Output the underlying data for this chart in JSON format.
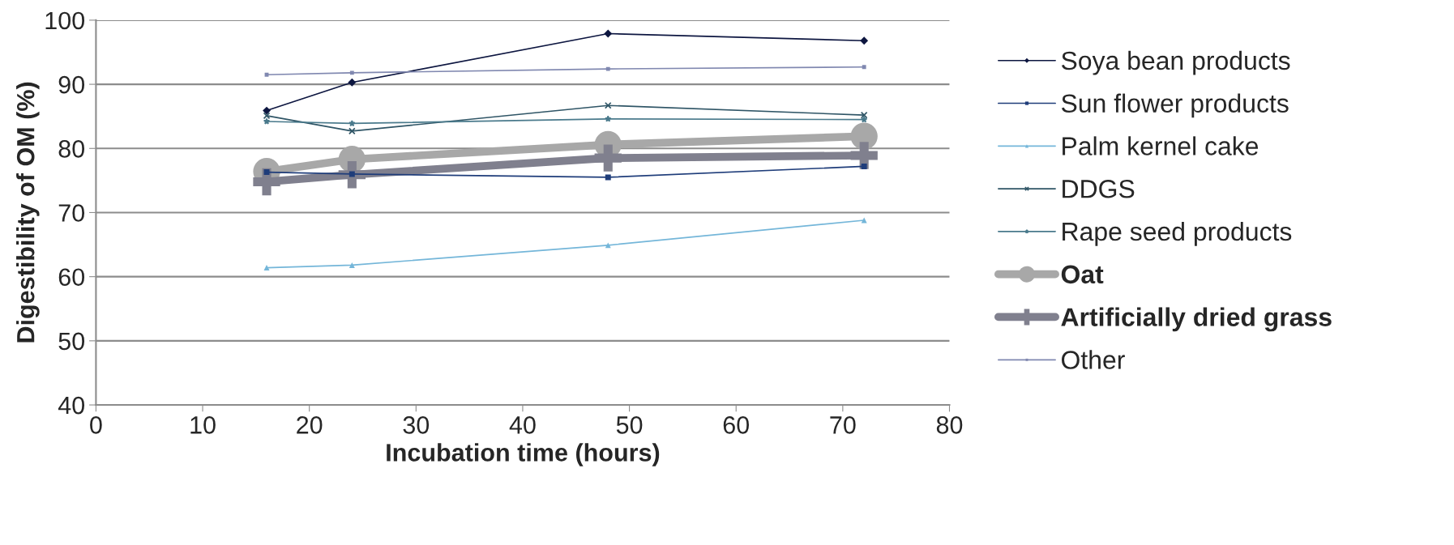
{
  "chart_data": {
    "type": "line",
    "xlabel": "Incubation time (hours)",
    "ylabel": "Digestibility of OM (%)",
    "x": [
      16,
      24,
      48,
      72
    ],
    "series": [
      {
        "name": "Soya bean products",
        "color": "#0d1640",
        "marker": "diamond",
        "values": [
          85.9,
          90.3,
          97.9,
          96.8
        ]
      },
      {
        "name": "Sun flower products",
        "color": "#1f3d7a",
        "marker": "square",
        "values": [
          76.3,
          76.0,
          75.5,
          77.2
        ]
      },
      {
        "name": "Palm kernel cake",
        "color": "#74b6d9",
        "marker": "triangle",
        "values": [
          61.4,
          61.8,
          64.9,
          68.8
        ]
      },
      {
        "name": "DDGS",
        "color": "#2f5566",
        "marker": "cross",
        "values": [
          85.1,
          82.7,
          86.7,
          85.2
        ]
      },
      {
        "name": "Rape seed products",
        "color": "#4a7a8c",
        "marker": "star",
        "values": [
          84.2,
          83.9,
          84.6,
          84.5
        ]
      },
      {
        "name": "Oat",
        "color": "#a8a8a8",
        "marker": "circle",
        "values": [
          76.4,
          78.3,
          80.6,
          81.9
        ]
      },
      {
        "name": "Artificially dried grass",
        "color": "#80808e",
        "marker": "plus",
        "values": [
          74.8,
          75.9,
          78.5,
          78.9
        ]
      },
      {
        "name": "Other",
        "color": "#8088b0",
        "marker": "square",
        "values": [
          91.5,
          91.8,
          92.4,
          92.7
        ]
      }
    ],
    "xlim": [
      0,
      80
    ],
    "xticks": [
      0,
      10,
      20,
      30,
      40,
      50,
      60,
      70,
      80
    ],
    "ylim": [
      40,
      100
    ],
    "yticks": [
      40,
      50,
      60,
      70,
      80,
      90,
      100
    ],
    "grid": "y",
    "legend": "right"
  }
}
